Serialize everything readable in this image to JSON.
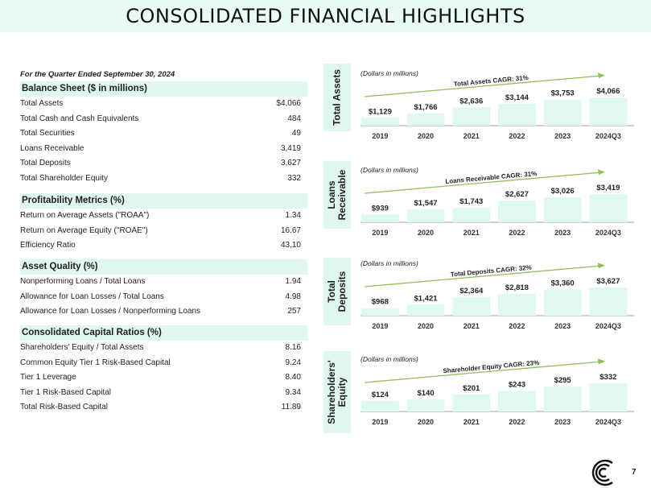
{
  "title": "CONSOLIDATED FINANCIAL HIGHLIGHTS",
  "period": "For the Quarter Ended September 30, 2024",
  "sections": [
    {
      "header": "Balance Sheet ($ in millions)",
      "rows": [
        {
          "label": "Total Assets",
          "value": "$4,066"
        },
        {
          "label": "Total Cash and Cash Equivalents",
          "value": "484"
        },
        {
          "label": "Total Securities",
          "value": "49"
        },
        {
          "label": "Loans Receivable",
          "value": "3,419"
        },
        {
          "label": "Total Deposits",
          "value": "3,627"
        },
        {
          "label": "Total Shareholder Equity",
          "value": "332"
        }
      ]
    },
    {
      "header": "Profitability Metrics (%)",
      "rows": [
        {
          "label": "Return on Average Assets (\"ROAA\")",
          "value": "1.34"
        },
        {
          "label": "Return on Average Equity (\"ROAE\")",
          "value": "16.67"
        },
        {
          "label": "Efficiency Ratio",
          "value": "43.10"
        }
      ]
    },
    {
      "header": "Asset Quality (%)",
      "rows": [
        {
          "label": "Nonperforming Loans / Total Loans",
          "value": "1.94"
        },
        {
          "label": "Allowance for Loan Losses / Total Loans",
          "value": "4.98"
        },
        {
          "label": "Allowance for Loan Losses / Nonperforming Loans",
          "value": "257"
        }
      ]
    },
    {
      "header": "Consolidated Capital Ratios (%)",
      "rows": [
        {
          "label": "Shareholders' Equity / Total Assets",
          "value": "8.16"
        },
        {
          "label": "Common Equity Tier 1 Risk-Based Capital",
          "value": "9.24"
        },
        {
          "label": "Tier 1 Leverage",
          "value": "8.40"
        },
        {
          "label": "Tier 1 Risk-Based Capital",
          "value": "9.34"
        },
        {
          "label": "Total Risk-Based Capital",
          "value": "11.89"
        }
      ]
    }
  ],
  "charts": [
    {
      "tab_label": "Total Assets",
      "note": "(Dollars in millions)",
      "cagr": "Total Assets CAGR: 31%"
    },
    {
      "tab_label": "Loans Receivable",
      "note": "(Dollars in millions)",
      "cagr": "Loans Receivable CAGR: 31%"
    },
    {
      "tab_label": "Total Deposits",
      "note": "(Dollars in millions)",
      "cagr": "Total Deposits CAGR: 32%"
    },
    {
      "tab_label": "Shareholders' Equity",
      "note": "(Dollars in millions)",
      "cagr": "Shareholder Equity CAGR: 23%"
    }
  ],
  "chart_data": [
    {
      "type": "bar",
      "categories": [
        "2019",
        "2020",
        "2021",
        "2022",
        "2023",
        "2024Q3"
      ],
      "values": [
        1129,
        1766,
        2636,
        3144,
        3753,
        4066
      ],
      "labels": [
        "$1,129",
        "$1,766",
        "$2,636",
        "$3,144",
        "$3,753",
        "$4,066"
      ]
    },
    {
      "type": "bar",
      "categories": [
        "2019",
        "2020",
        "2021",
        "2022",
        "2023",
        "2024Q3"
      ],
      "values": [
        939,
        1547,
        1743,
        2627,
        3026,
        3419
      ],
      "labels": [
        "$939",
        "$1,547",
        "$1,743",
        "$2,627",
        "$3,026",
        "$3,419"
      ]
    },
    {
      "type": "bar",
      "categories": [
        "2019",
        "2020",
        "2021",
        "2022",
        "2023",
        "2024Q3"
      ],
      "values": [
        968,
        1421,
        2364,
        2818,
        3360,
        3627
      ],
      "labels": [
        "$968",
        "$1,421",
        "$2,364",
        "$2,818",
        "$3,360",
        "$3,627"
      ]
    },
    {
      "type": "bar",
      "categories": [
        "2019",
        "2020",
        "2021",
        "2022",
        "2023",
        "2024Q3"
      ],
      "values": [
        124,
        140,
        201,
        243,
        295,
        332
      ],
      "labels": [
        "$124",
        "$140",
        "$201",
        "$243",
        "$295",
        "$332"
      ]
    }
  ],
  "colors": {
    "bar": "#dff8f2",
    "arrow": "#8fbf5a",
    "accent_band": "#e9faf7"
  },
  "logo_icon": "concentric-c-logo",
  "page_number": "7"
}
